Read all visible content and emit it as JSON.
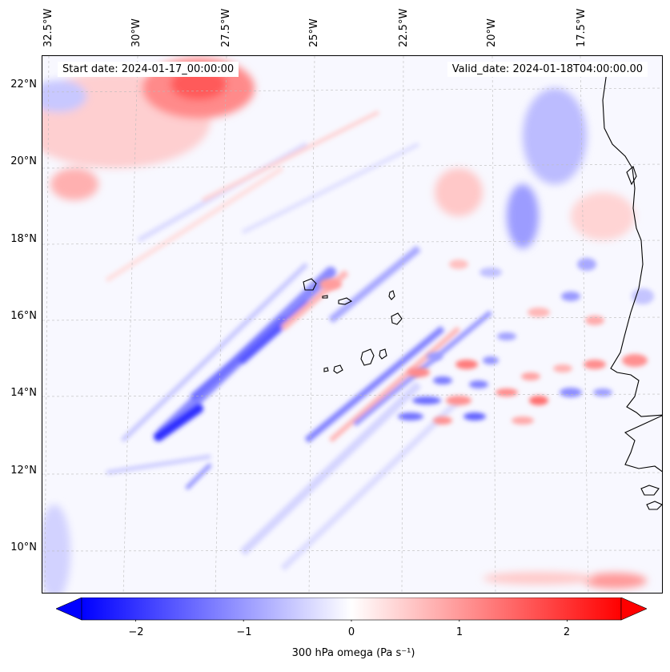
{
  "map": {
    "start_date": "Start date: 2024-01-17_00:00:00",
    "valid_date": "Valid_date: 2024-01-18T04:00:00.00",
    "longitude_labels": [
      "32.5°W",
      "30°W",
      "27.5°W",
      "25°W",
      "22.5°W",
      "20°W",
      "17.5°W"
    ],
    "latitude_labels": [
      "22°N",
      "20°N",
      "18°N",
      "16°N",
      "14°N",
      "12°N",
      "10°N"
    ],
    "extent": {
      "lon_min": -33,
      "lon_max": -15.5,
      "lat_min": 8.8,
      "lat_max": 22.8
    },
    "field": "300 hPa omega",
    "colors": {
      "negative": "#0000ff",
      "zero": "#ffffff",
      "positive": "#ff0000",
      "coast": "#000000"
    }
  },
  "colorbar": {
    "label": "300 hPa omega (Pa s⁻¹)",
    "ticks": [
      "−2",
      "−1",
      "0",
      "1",
      "2"
    ],
    "tick_values": [
      -2,
      -1,
      0,
      1,
      2
    ],
    "range": [
      -2.5,
      2.5
    ],
    "extend": "both"
  }
}
